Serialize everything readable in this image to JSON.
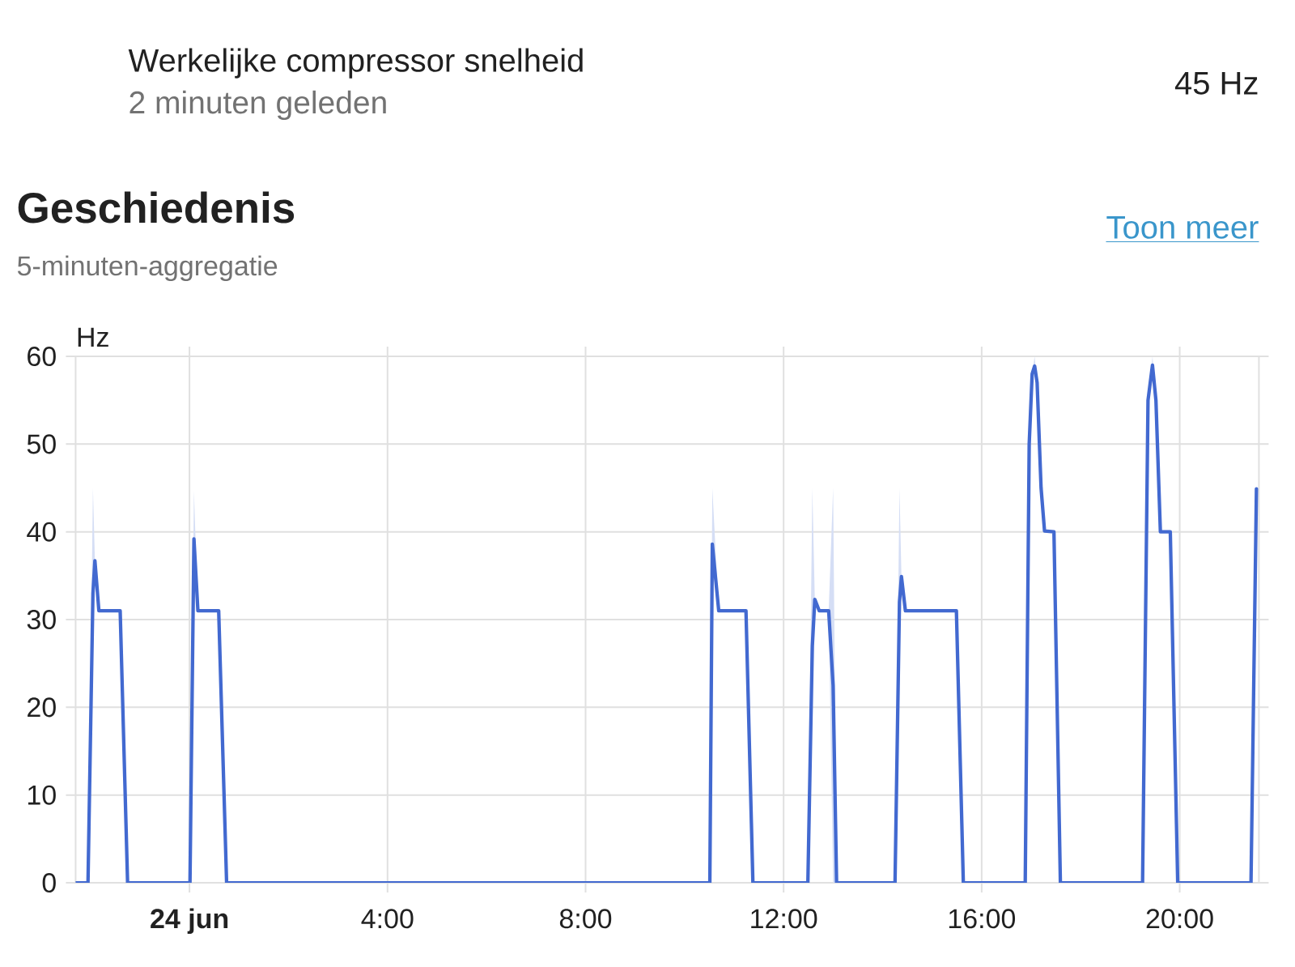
{
  "chart_data": {
    "type": "line",
    "title": "Geschiedenis",
    "subtitle": "5-minuten-aggregatie",
    "ylabel": "Hz",
    "annotations": [
      "Werkelijke compressor snelheid",
      "2 minuten geleden",
      "45 Hz",
      "Toon meer"
    ],
    "x": [
      -2.3,
      -2.05,
      -1.95,
      -1.91,
      -1.83,
      -1.4,
      -1.25,
      0.01,
      0.09,
      0.17,
      0.59,
      0.75,
      10.51,
      10.56,
      10.69,
      11.24,
      11.38,
      12.49,
      12.58,
      12.63,
      12.72,
      12.91,
      13.0,
      13.07,
      14.25,
      14.34,
      14.38,
      14.46,
      15.49,
      15.63,
      16.88,
      16.96,
      17.02,
      17.07,
      17.12,
      17.2,
      17.27,
      17.46,
      17.59,
      19.25,
      19.36,
      19.45,
      19.52,
      19.61,
      19.81,
      19.96,
      21.44,
      21.55
    ],
    "series": [
      {
        "color": "#4269d0",
        "values": [
          0,
          0,
          33,
          36.7,
          31,
          31,
          0,
          0,
          39.2,
          31,
          31,
          0,
          0,
          38.6,
          31,
          31,
          0,
          0,
          27,
          32.3,
          31,
          31,
          22.5,
          0,
          0,
          32,
          34.9,
          31,
          31,
          0,
          0,
          50,
          58,
          58.9,
          57,
          45,
          40.1,
          40,
          0,
          0,
          55,
          59,
          55,
          40,
          40,
          0,
          0,
          44.9
        ],
        "lower": [
          0,
          0,
          33,
          36.7,
          31,
          31,
          0,
          0,
          39.2,
          31,
          31,
          0,
          0,
          38.6,
          31,
          31,
          0,
          0,
          27,
          32.3,
          31,
          31,
          0,
          0,
          0,
          32,
          34.9,
          31,
          31,
          0,
          0,
          50,
          58,
          58.9,
          57,
          45,
          40.1,
          40,
          0,
          0,
          55,
          59,
          55,
          40,
          40,
          0,
          0,
          44.9
        ],
        "upper": [
          0,
          0,
          45,
          36.7,
          31,
          31,
          0,
          0,
          44.7,
          31,
          31,
          0,
          0,
          45,
          31,
          31,
          0,
          0,
          45,
          32.3,
          31,
          31,
          45,
          0,
          0,
          45,
          34.9,
          31,
          31,
          0,
          0,
          50,
          58,
          60,
          57,
          45,
          40.1,
          40,
          0,
          0,
          55,
          60,
          55,
          40,
          40,
          0,
          0,
          45
        ]
      }
    ],
    "xlim": [
      -2.3,
      21.6
    ],
    "ylim": [
      0,
      60
    ],
    "xticks": [
      {
        "value": 0,
        "label": "**24 jun**"
      },
      {
        "value": 4,
        "label": "4:00"
      },
      {
        "value": 8,
        "label": "8:00"
      },
      {
        "value": 12,
        "label": "12:00"
      },
      {
        "value": 16,
        "label": "16:00"
      },
      {
        "value": 20,
        "label": "20:00"
      }
    ],
    "yticks": [
      0,
      10,
      20,
      30,
      40,
      50,
      60
    ],
    "grid": true
  }
}
